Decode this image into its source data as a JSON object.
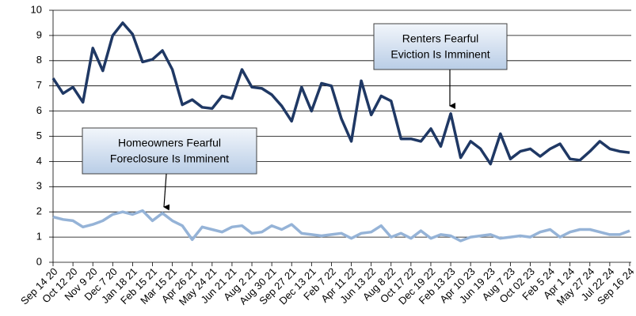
{
  "chart_data": {
    "type": "line",
    "categories": [
      "Sep 14 20",
      null,
      "Oct 12 20",
      null,
      "Nov 9 20",
      null,
      "Dec 7 20",
      null,
      "Jan 18 21",
      null,
      "Feb 15 21",
      null,
      "Mar 15 21",
      null,
      "Apr 26 21",
      null,
      "May 24 21",
      null,
      "Jun 21 21",
      null,
      "Aug 2 21",
      null,
      "Aug 30 21",
      null,
      "Sep 27 21",
      null,
      "Dec 13 21",
      null,
      "Feb 7 22",
      null,
      "Apr 11 22",
      null,
      "Jun 13 22",
      null,
      "Aug 8 22",
      null,
      "Oct 17 22",
      null,
      "Dec 19 22",
      null,
      "Feb 13 23",
      null,
      "Apr 10 23",
      null,
      "Jun 19 23",
      null,
      "Aug 7 23",
      null,
      "Oct 02 23",
      null,
      "Feb 5 24",
      null,
      "Apr 1 24",
      null,
      "May 27 24",
      null,
      "Jul 22 24",
      null,
      "Sep 16 24"
    ],
    "series": [
      {
        "color": "#1f3864",
        "values": [
          7.3,
          6.7,
          6.95,
          6.35,
          8.5,
          7.6,
          9.0,
          9.5,
          9.05,
          7.95,
          8.05,
          8.4,
          7.65,
          6.25,
          6.45,
          6.15,
          6.1,
          6.6,
          6.5,
          7.65,
          6.95,
          6.9,
          6.65,
          6.2,
          5.6,
          6.95,
          6.0,
          7.1,
          7.0,
          5.7,
          4.8,
          7.2,
          5.85,
          6.6,
          6.4,
          4.9,
          4.9,
          4.8,
          5.3,
          4.6,
          5.9,
          4.15,
          4.8,
          4.5,
          3.9,
          5.1,
          4.1,
          4.4,
          4.5,
          4.2,
          4.5,
          4.7,
          4.1,
          4.05,
          4.4,
          4.8,
          4.5,
          4.4,
          4.35
        ]
      },
      {
        "color": "#95b3d7",
        "values": [
          1.8,
          1.7,
          1.65,
          1.4,
          1.5,
          1.65,
          1.9,
          2.0,
          1.9,
          2.05,
          1.65,
          1.95,
          1.65,
          1.45,
          0.9,
          1.4,
          1.3,
          1.2,
          1.4,
          1.45,
          1.15,
          1.2,
          1.45,
          1.3,
          1.5,
          1.15,
          1.1,
          1.05,
          1.1,
          1.15,
          0.95,
          1.15,
          1.2,
          1.45,
          1.0,
          1.15,
          0.95,
          1.25,
          0.95,
          1.1,
          1.05,
          0.85,
          1.0,
          1.05,
          1.1,
          0.95,
          1.0,
          1.05,
          1.0,
          1.2,
          1.3,
          1.0,
          1.2,
          1.3,
          1.3,
          1.2,
          1.1,
          1.1,
          1.25
        ]
      }
    ],
    "annotations": [
      {
        "lines": [
          "Renters Fearful",
          "Eviction Is Imminent"
        ]
      },
      {
        "lines": [
          "Homeowners Fearful",
          "Foreclosure Is Imminent"
        ]
      }
    ],
    "ylim": [
      0,
      10
    ],
    "yticks": [
      0,
      1,
      2,
      3,
      4,
      5,
      6,
      7,
      8,
      9,
      10
    ],
    "grid": true
  }
}
